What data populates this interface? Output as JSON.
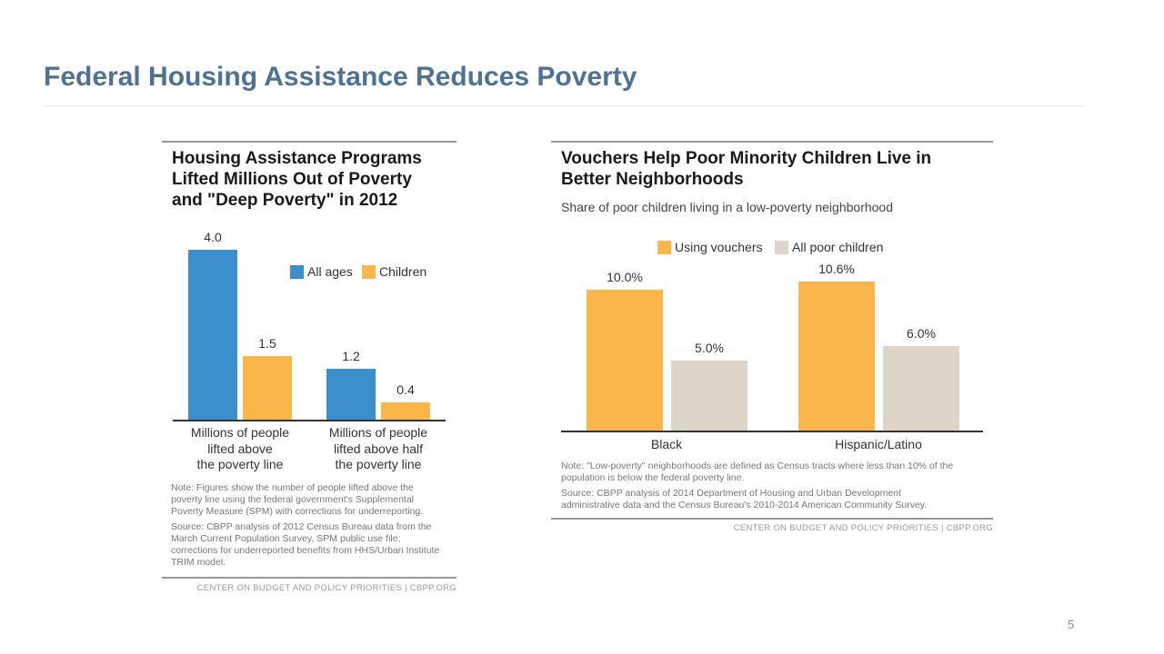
{
  "slide": {
    "title": "Federal Housing Assistance Reduces Poverty",
    "page_number": "5"
  },
  "chart_data": [
    {
      "type": "bar",
      "title": "Housing Assistance Programs Lifted Millions Out of Poverty and \"Deep Poverty\" in 2012",
      "title_lines": [
        "Housing Assistance Programs",
        "Lifted Millions Out of Poverty",
        "and \"Deep Poverty\" in 2012"
      ],
      "categories": [
        "Millions of people lifted above the poverty line",
        "Millions of people lifted above half the poverty line"
      ],
      "category_lines": [
        [
          "Millions of people",
          "lifted above",
          "the poverty line"
        ],
        [
          "Millions of people",
          "lifted above half",
          "the poverty line"
        ]
      ],
      "series": [
        {
          "name": "All ages",
          "values": [
            4.0,
            1.2
          ],
          "labels": [
            "4.0",
            "1.2"
          ],
          "color": "#3a8fcc"
        },
        {
          "name": "Children",
          "values": [
            1.5,
            0.4
          ],
          "labels": [
            "1.5",
            "0.4"
          ],
          "color": "#fbb64b"
        }
      ],
      "ylim": [
        0,
        4.0
      ],
      "grid": false,
      "legend": "top-right",
      "note": "Note: Figures show the number of people lifted above the poverty line using the federal government's Supplemental Poverty Measure (SPM) with corrections for underreporting.",
      "source": "Source: CBPP analysis of 2012 Census Bureau data from the March Current Population Survey, SPM public use file; corrections for underreported benefits from HHS/Urban Institute TRIM model.",
      "footer": "CENTER ON BUDGET AND POLICY PRIORITIES | CBPP.ORG"
    },
    {
      "type": "bar",
      "title": "Vouchers Help Poor Minority Children Live in Better Neighborhoods",
      "title_lines": [
        "Vouchers Help Poor Minority Children Live in",
        "Better Neighborhoods"
      ],
      "subtitle": "Share of poor children living in a low-poverty neighborhood",
      "categories": [
        "Black",
        "Hispanic/Latino"
      ],
      "series": [
        {
          "name": "Using vouchers",
          "values": [
            10.0,
            10.6
          ],
          "labels": [
            "10.0%",
            "10.6%"
          ],
          "color": "#fbb64b"
        },
        {
          "name": "All poor children",
          "values": [
            5.0,
            6.0
          ],
          "labels": [
            "5.0%",
            "6.0%"
          ],
          "color": "#ddd5c8"
        }
      ],
      "ylim": [
        0,
        10.6
      ],
      "grid": false,
      "legend": "top",
      "note": "Note: \"Low-poverty\" neighborhoods are defined as Census tracts where less than 10% of the population is below the federal poverty line.",
      "source": "Source: CBPP analysis of 2014 Department of Housing and Urban Development administrative data and the Census Bureau's 2010-2014 American Community Survey.",
      "footer": "CENTER ON BUDGET AND POLICY PRIORITIES | CBPP.ORG"
    }
  ]
}
